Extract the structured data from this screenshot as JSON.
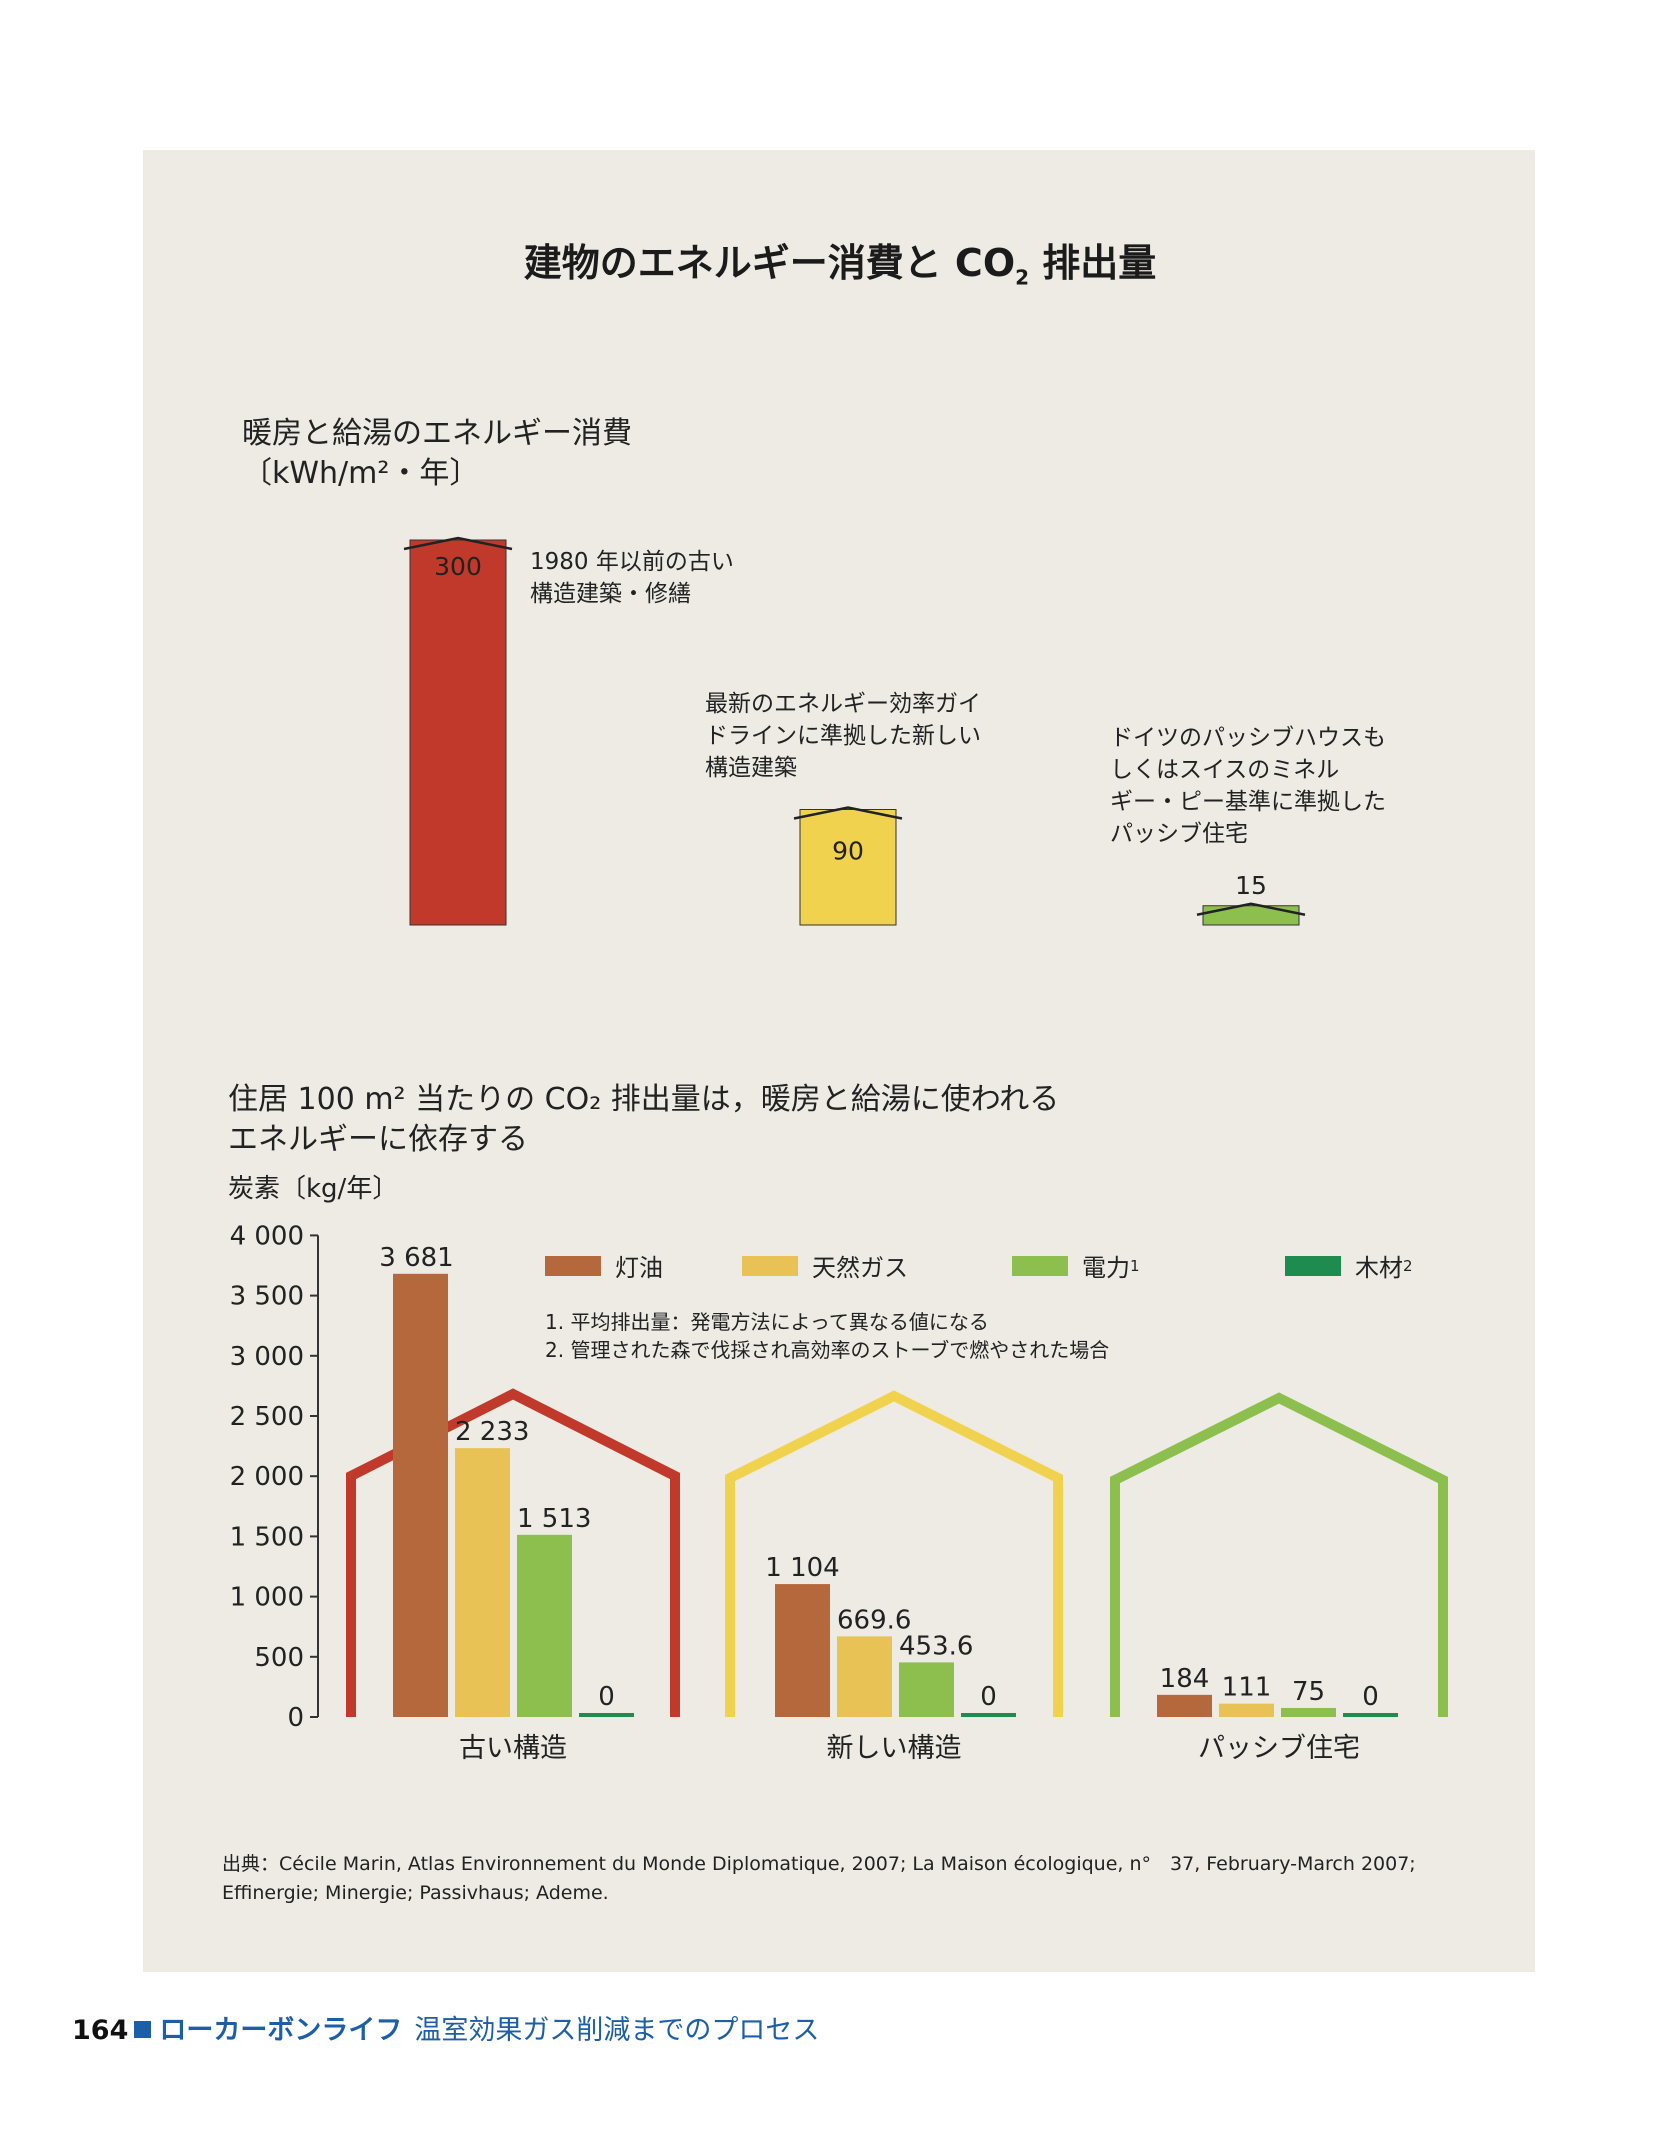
{
  "title": "建物のエネルギー消費と CO",
  "title_sub": "2",
  "title_tail": " 排出量",
  "chart_data": [
    {
      "type": "bar",
      "title": "暖房と給湯のエネルギー消費",
      "ylabel": "〔kWh/m²・年〕",
      "categories": [
        "1980 年以前の古い構造建築・修繕",
        "最新のエネルギー効率ガイドラインに準拠した新しい構造建築",
        "ドイツのパッシブハウスもしくはスイスのミネルギー・ピー基準に準拠したパッシブ住宅"
      ],
      "values": [
        300,
        90,
        15
      ],
      "value_labels": [
        "300",
        "90",
        "15"
      ],
      "colors": [
        "#c0392b",
        "#f1d24e",
        "#8dbf4e"
      ],
      "notes": [
        [
          "1980 年以前の古い",
          "構造建築・修繕"
        ],
        [
          "最新のエネルギー効率ガイ",
          "ドラインに準拠した新しい",
          "構造建築"
        ],
        [
          "ドイツのパッシブハウスも",
          "しくはスイスのミネル",
          "ギー・ピー基準に準拠した",
          "パッシブ住宅"
        ]
      ]
    },
    {
      "type": "bar",
      "title_lines": [
        "住居 100 m² 当たりの CO₂ 排出量は，暖房と給湯に使われる",
        "エネルギーに依存する"
      ],
      "ylabel": "炭素〔kg/年〕",
      "ylim": [
        0,
        4000
      ],
      "yticks": [
        0,
        500,
        1000,
        1500,
        2000,
        2500,
        3000,
        3500,
        4000
      ],
      "ytick_labels": [
        "0",
        "500",
        "1 000",
        "1 500",
        "2 000",
        "2 500",
        "3 000",
        "3 500",
        "4 000"
      ],
      "categories": [
        "古い構造",
        "新しい構造",
        "パッシブ住宅"
      ],
      "category_colors": [
        "#c0392b",
        "#f1d24e",
        "#8dbf4e"
      ],
      "series": [
        {
          "name": "灯油",
          "color": "#b5683b",
          "values": [
            3681,
            1104,
            184
          ],
          "labels": [
            "3 681",
            "1 104",
            "184"
          ]
        },
        {
          "name": "天然ガス",
          "color": "#e8c255",
          "values": [
            2233,
            669.6,
            111
          ],
          "labels": [
            "2 233",
            "669.6",
            "111"
          ]
        },
        {
          "name": "電力",
          "sup": "1",
          "color": "#8dbf4e",
          "values": [
            1513,
            453.6,
            75
          ],
          "labels": [
            "1 513",
            "453.6",
            "75"
          ]
        },
        {
          "name": "木材",
          "sup": "2",
          "color": "#1e8c4e",
          "values": [
            0,
            0,
            0
          ],
          "labels": [
            "0",
            "0",
            "0"
          ]
        }
      ],
      "footnotes": [
        "1. 平均排出量：発電方法によって異なる値になる",
        "2. 管理された森で伐採され高効率のストーブで燃やされた場合"
      ]
    }
  ],
  "source": [
    "出典：Cécile Marin, Atlas Environnement du Monde Diplomatique, 2007; La Maison écologique, n°　37, February-March 2007;",
    "Effinergie; Minergie; Passivhaus; Ademe."
  ],
  "footer": {
    "page_number": "164",
    "book_title": "ローカーボンライフ",
    "chapter_title": "温室効果ガス削減までのプロセス"
  }
}
